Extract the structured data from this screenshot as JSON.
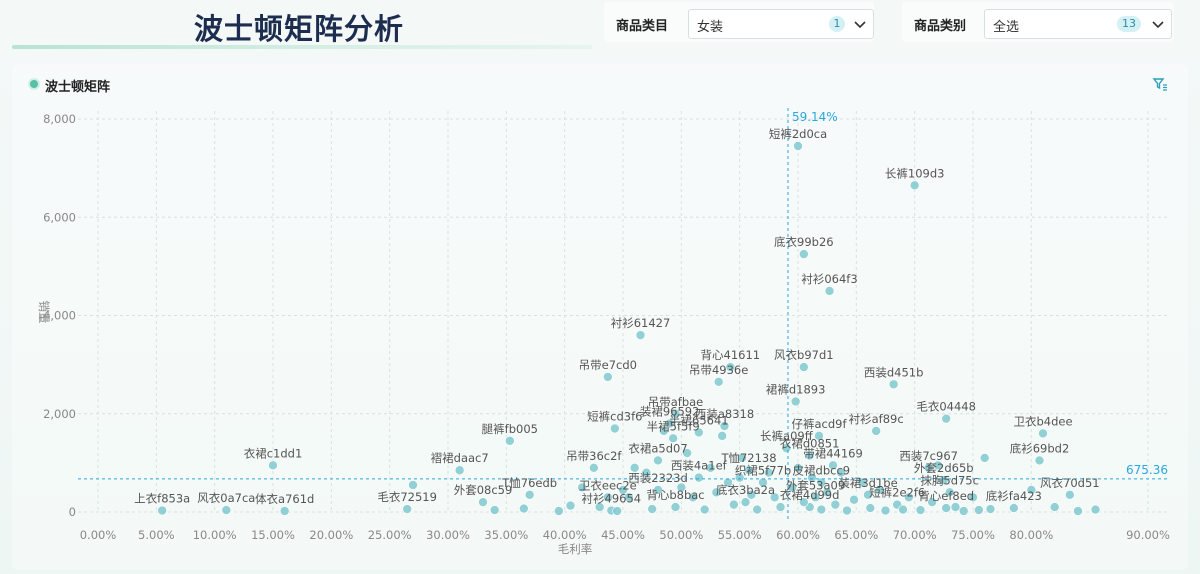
{
  "header": {
    "title": "波士顿矩阵分析"
  },
  "filters": [
    {
      "label": "商品类目",
      "value": "女装",
      "count": "1"
    },
    {
      "label": "商品类别",
      "value": "全选",
      "count": "13"
    }
  ],
  "panel": {
    "title": "波士顿矩阵"
  },
  "colors": {
    "point": "#7fc8cf",
    "refline": "#2aa7e0",
    "title": "#1d2d50"
  },
  "chart_data": {
    "type": "scatter",
    "xlabel": "毛利率",
    "ylabel": "销量",
    "x_unit": "percent",
    "xlim": [
      0,
      0.9
    ],
    "ylim": [
      0,
      8000
    ],
    "x_ticks": [
      0,
      0.05,
      0.1,
      0.15,
      0.2,
      0.25,
      0.3,
      0.35,
      0.4,
      0.45,
      0.5,
      0.55,
      0.6,
      0.65,
      0.7,
      0.75,
      0.8,
      0.9
    ],
    "x_tick_labels": [
      "0.00%",
      "5.00%",
      "10.00%",
      "15.00%",
      "20.00%",
      "25.00%",
      "30.00%",
      "35.00%",
      "40.00%",
      "45.00%",
      "50.00%",
      "55.00%",
      "60.00%",
      "65.00%",
      "70.00%",
      "75.00%",
      "80.00%",
      "90.00%"
    ],
    "y_ticks": [
      0,
      2000,
      4000,
      6000,
      8000
    ],
    "y_tick_labels": [
      "0",
      "2,000",
      "4,000",
      "6,000",
      "8,000"
    ],
    "grid": true,
    "reference_lines": {
      "x": 0.5914,
      "x_label": "59.14%",
      "y": 675.36,
      "y_label": "675.36"
    },
    "points": [
      {
        "label": "短裤2d0ca",
        "x": 0.6,
        "y": 7450
      },
      {
        "label": "长裤109d3",
        "x": 0.7,
        "y": 6650
      },
      {
        "label": "底衣99b26",
        "x": 0.605,
        "y": 5250
      },
      {
        "label": "衬衫064f3",
        "x": 0.627,
        "y": 4500
      },
      {
        "label": "衬衫61427",
        "x": 0.465,
        "y": 3600
      },
      {
        "label": "吊带e7cd0",
        "x": 0.437,
        "y": 2750
      },
      {
        "label": "背心41611",
        "x": 0.542,
        "y": 2950
      },
      {
        "label": "吊带4936e",
        "x": 0.532,
        "y": 2650
      },
      {
        "label": "风衣b97d1",
        "x": 0.605,
        "y": 2950
      },
      {
        "label": "西装d451b",
        "x": 0.682,
        "y": 2600
      },
      {
        "label": "裙裤d1893",
        "x": 0.598,
        "y": 2250
      },
      {
        "label": "吊带afbae",
        "x": 0.495,
        "y": 2000
      },
      {
        "label": "装裙96592",
        "x": 0.49,
        "y": 1800
      },
      {
        "label": "西装a8318",
        "x": 0.537,
        "y": 1750
      },
      {
        "label": "半裙65641",
        "x": 0.515,
        "y": 1620
      },
      {
        "label": "短裤cd3f6",
        "x": 0.443,
        "y": 1700
      },
      {
        "label": "毛衣04448",
        "x": 0.727,
        "y": 1900
      },
      {
        "label": "卫衣b4dee",
        "x": 0.81,
        "y": 1600
      },
      {
        "label": "衬衫af89c",
        "x": 0.667,
        "y": 1650
      },
      {
        "label": "仔裤acd9f",
        "x": 0.618,
        "y": 1550
      },
      {
        "label": "腿裤fb005",
        "x": 0.353,
        "y": 1450
      },
      {
        "label": "半裙5f5f9",
        "x": 0.493,
        "y": 1500
      },
      {
        "label": "长裤a09ff",
        "x": 0.59,
        "y": 1300
      },
      {
        "label": "衣裙d0851",
        "x": 0.61,
        "y": 1150
      },
      {
        "label": "衣裙c1dd1",
        "x": 0.15,
        "y": 950
      },
      {
        "label": "褶裙daac7",
        "x": 0.31,
        "y": 850
      },
      {
        "label": "吊带36c2f",
        "x": 0.425,
        "y": 900
      },
      {
        "label": "衣裙a5d07",
        "x": 0.48,
        "y": 1050
      },
      {
        "label": "T恤72138",
        "x": 0.558,
        "y": 850
      },
      {
        "label": "带裙44169",
        "x": 0.63,
        "y": 950
      },
      {
        "label": "西装7c967",
        "x": 0.712,
        "y": 900
      },
      {
        "label": "底衫69bd2",
        "x": 0.807,
        "y": 1050
      },
      {
        "label": "西装4a1ef",
        "x": 0.515,
        "y": 700
      },
      {
        "label": "织裙5f77b",
        "x": 0.57,
        "y": 600
      },
      {
        "label": "皮裙dbcc9",
        "x": 0.62,
        "y": 600
      },
      {
        "label": "外套2d65b",
        "x": 0.725,
        "y": 650
      },
      {
        "label": "西装2323d",
        "x": 0.48,
        "y": 450
      },
      {
        "label": "T恤76edb",
        "x": 0.37,
        "y": 350
      },
      {
        "label": "卫衣eec2e",
        "x": 0.437,
        "y": 300
      },
      {
        "label": "外套53a09",
        "x": 0.615,
        "y": 300
      },
      {
        "label": "装裙3d1be",
        "x": 0.66,
        "y": 350
      },
      {
        "label": "抹胸5d75c",
        "x": 0.73,
        "y": 400
      },
      {
        "label": "风衣70d51",
        "x": 0.833,
        "y": 350
      },
      {
        "label": "底衣3ba2a",
        "x": 0.555,
        "y": 200
      },
      {
        "label": "外套08c59",
        "x": 0.33,
        "y": 200
      },
      {
        "label": "短裤2e2f6",
        "x": 0.685,
        "y": 150
      },
      {
        "label": "衣裙4d99d",
        "x": 0.61,
        "y": 100
      },
      {
        "label": "背心ef8ed",
        "x": 0.727,
        "y": 80
      },
      {
        "label": "底衫fa423",
        "x": 0.785,
        "y": 80
      },
      {
        "label": "上衣f853a",
        "x": 0.055,
        "y": 30
      },
      {
        "label": "风衣0a7ca",
        "x": 0.11,
        "y": 40
      },
      {
        "label": "体衣a761d",
        "x": 0.16,
        "y": 20
      },
      {
        "label": "毛衣72519",
        "x": 0.265,
        "y": 60
      },
      {
        "label": "衬衫49654",
        "x": 0.44,
        "y": 30
      },
      {
        "label": "背心b8bac",
        "x": 0.495,
        "y": 100
      },
      {
        "label": "",
        "x": 0.27,
        "y": 550
      },
      {
        "label": "",
        "x": 0.405,
        "y": 130
      },
      {
        "label": "",
        "x": 0.34,
        "y": 40
      },
      {
        "label": "",
        "x": 0.365,
        "y": 70
      },
      {
        "label": "",
        "x": 0.395,
        "y": 20
      },
      {
        "label": "",
        "x": 0.415,
        "y": 500
      },
      {
        "label": "",
        "x": 0.43,
        "y": 100
      },
      {
        "label": "",
        "x": 0.445,
        "y": 20
      },
      {
        "label": "",
        "x": 0.45,
        "y": 450
      },
      {
        "label": "",
        "x": 0.455,
        "y": 300
      },
      {
        "label": "",
        "x": 0.46,
        "y": 900
      },
      {
        "label": "",
        "x": 0.47,
        "y": 800
      },
      {
        "label": "",
        "x": 0.475,
        "y": 60
      },
      {
        "label": "",
        "x": 0.485,
        "y": 1650
      },
      {
        "label": "",
        "x": 0.5,
        "y": 500
      },
      {
        "label": "",
        "x": 0.505,
        "y": 1200
      },
      {
        "label": "",
        "x": 0.51,
        "y": 300
      },
      {
        "label": "",
        "x": 0.52,
        "y": 50
      },
      {
        "label": "",
        "x": 0.525,
        "y": 900
      },
      {
        "label": "",
        "x": 0.53,
        "y": 400
      },
      {
        "label": "",
        "x": 0.535,
        "y": 1550
      },
      {
        "label": "",
        "x": 0.54,
        "y": 600
      },
      {
        "label": "",
        "x": 0.545,
        "y": 150
      },
      {
        "label": "",
        "x": 0.55,
        "y": 700
      },
      {
        "label": "",
        "x": 0.552,
        "y": 1100
      },
      {
        "label": "",
        "x": 0.56,
        "y": 350
      },
      {
        "label": "",
        "x": 0.565,
        "y": 50
      },
      {
        "label": "",
        "x": 0.575,
        "y": 800
      },
      {
        "label": "",
        "x": 0.58,
        "y": 300
      },
      {
        "label": "",
        "x": 0.585,
        "y": 100
      },
      {
        "label": "",
        "x": 0.595,
        "y": 500
      },
      {
        "label": "",
        "x": 0.6,
        "y": 900
      },
      {
        "label": "",
        "x": 0.605,
        "y": 200
      },
      {
        "label": "",
        "x": 0.612,
        "y": 700
      },
      {
        "label": "",
        "x": 0.62,
        "y": 50
      },
      {
        "label": "",
        "x": 0.625,
        "y": 400
      },
      {
        "label": "",
        "x": 0.632,
        "y": 150
      },
      {
        "label": "",
        "x": 0.637,
        "y": 800
      },
      {
        "label": "",
        "x": 0.642,
        "y": 30
      },
      {
        "label": "",
        "x": 0.648,
        "y": 250
      },
      {
        "label": "",
        "x": 0.655,
        "y": 600
      },
      {
        "label": "",
        "x": 0.662,
        "y": 80
      },
      {
        "label": "",
        "x": 0.67,
        "y": 450
      },
      {
        "label": "",
        "x": 0.675,
        "y": 30
      },
      {
        "label": "",
        "x": 0.69,
        "y": 50
      },
      {
        "label": "",
        "x": 0.695,
        "y": 300
      },
      {
        "label": "",
        "x": 0.705,
        "y": 40
      },
      {
        "label": "",
        "x": 0.715,
        "y": 200
      },
      {
        "label": "",
        "x": 0.72,
        "y": 950
      },
      {
        "label": "",
        "x": 0.735,
        "y": 100
      },
      {
        "label": "",
        "x": 0.742,
        "y": 20
      },
      {
        "label": "",
        "x": 0.75,
        "y": 300
      },
      {
        "label": "",
        "x": 0.755,
        "y": 40
      },
      {
        "label": "",
        "x": 0.76,
        "y": 1100
      },
      {
        "label": "",
        "x": 0.765,
        "y": 60
      },
      {
        "label": "",
        "x": 0.8,
        "y": 450
      },
      {
        "label": "",
        "x": 0.82,
        "y": 100
      },
      {
        "label": "",
        "x": 0.84,
        "y": 20
      },
      {
        "label": "",
        "x": 0.855,
        "y": 50
      }
    ]
  }
}
